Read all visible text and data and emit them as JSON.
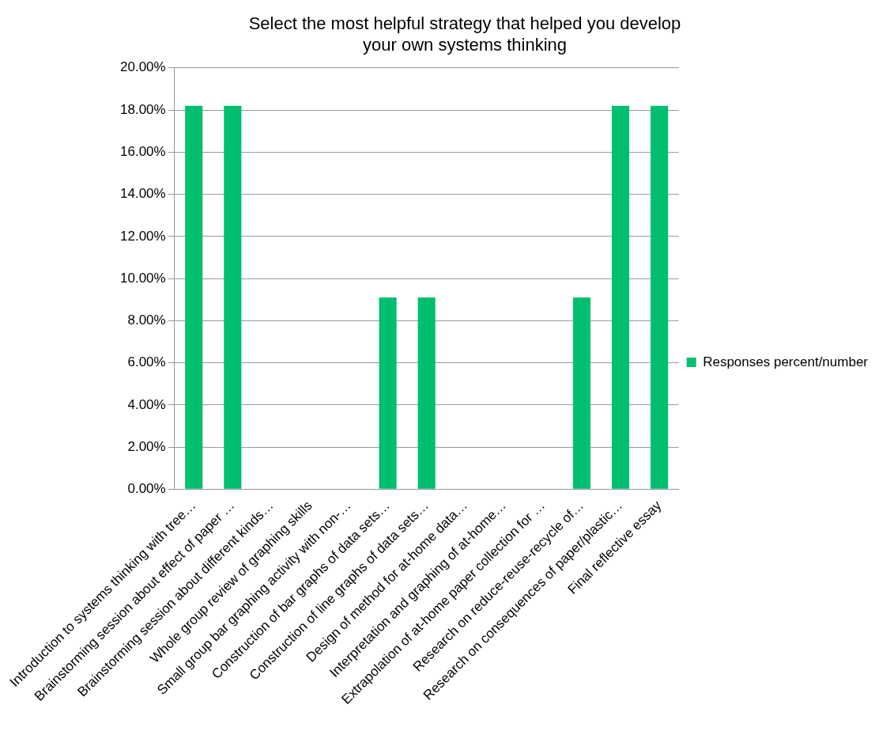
{
  "chart_data": {
    "type": "bar",
    "title": "Select the most helpful strategy that helped you develop your own systems thinking",
    "categories": [
      "Introduction to systems thinking with tree…",
      "Brainstorming session about effect of paper …",
      "Brainstorming session about different kinds…",
      "Whole group review of graphing skills",
      "Small group bar graphing activity with non-…",
      "Construction of bar graphs of data sets…",
      "Construction of line graphs of data sets…",
      "Design of method for at-home data…",
      "Interpretation and graphing of at-home…",
      "Extrapolation of at-home paper collection for …",
      "Research on reduce-reuse-recycle of…",
      "Research on consequences of paper/plastic…",
      "Final reflective essay"
    ],
    "series": [
      {
        "name": "Responses percent/number",
        "color": "#00bf6f",
        "values": [
          18.2,
          18.2,
          0,
          0,
          0,
          9.1,
          9.1,
          0,
          0,
          0,
          9.1,
          18.2,
          18.2
        ]
      }
    ],
    "ylim": [
      0,
      20
    ],
    "yticks": [
      {
        "value": 0,
        "label": "0.00%"
      },
      {
        "value": 2,
        "label": "2.00%"
      },
      {
        "value": 4,
        "label": "4.00%"
      },
      {
        "value": 6,
        "label": "6.00%"
      },
      {
        "value": 8,
        "label": "8.00%"
      },
      {
        "value": 10,
        "label": "10.00%"
      },
      {
        "value": 12,
        "label": "12.00%"
      },
      {
        "value": 14,
        "label": "14.00%"
      },
      {
        "value": 16,
        "label": "16.00%"
      },
      {
        "value": 18,
        "label": "18.00%"
      },
      {
        "value": 20,
        "label": "20.00%"
      }
    ],
    "grid": "y",
    "legend": "right"
  }
}
